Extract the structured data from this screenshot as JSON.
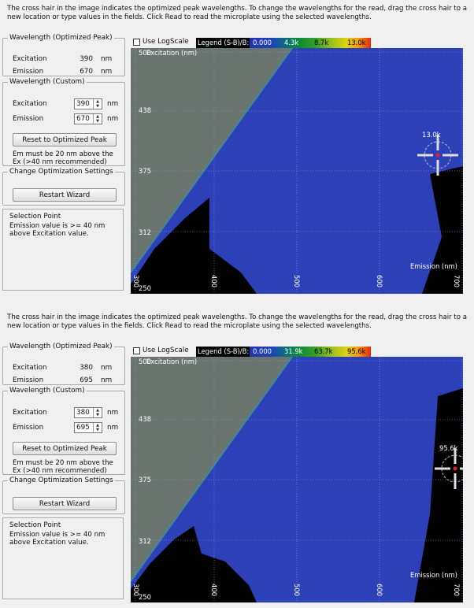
{
  "instructions": "The cross hair in the image indicates the optimized peak wavelengths. To change the wavelengths for the read, drag the cross hair to a new location or type values in the fields. Click Read to read the microplate using the selected wavelengths.",
  "labels": {
    "optimized_title": "Wavelength (Optimized Peak)",
    "excitation": "Excitation",
    "emission": "Emission",
    "nm": "nm",
    "custom_title": "Wavelength (Custom)",
    "reset_button": "Reset to Optimized Peak",
    "custom_note": "Em must be 20 nm above the Ex (>40 nm recommended)",
    "change_title": "Change Optimization Settings",
    "restart_button": "Restart Wizard",
    "selection_title": "Selection Point",
    "selection_msg": "Emission value is >= 40 nm above Excitation value.",
    "use_log_scale": "Use LogScale",
    "legend_label": "Legend (S-B)/B:",
    "y_axis_label": "Excitation (nm)",
    "x_axis_label": "Emission (nm)"
  },
  "panels": [
    {
      "optimized": {
        "excitation": "390",
        "emission": "670"
      },
      "custom": {
        "excitation": "390",
        "emission": "670"
      },
      "legend_ticks": [
        "0.000",
        "4.3k",
        "8.7k",
        "13.0k"
      ],
      "peak_label": "13.0k",
      "y_ticks": [
        "500",
        "438",
        "375",
        "312",
        "250"
      ],
      "x_ticks": [
        "300",
        "400",
        "500",
        "600",
        "700"
      ]
    },
    {
      "optimized": {
        "excitation": "380",
        "emission": "695"
      },
      "custom": {
        "excitation": "380",
        "emission": "695"
      },
      "legend_ticks": [
        "0.000",
        "31.9k",
        "63.7k",
        "95.6k"
      ],
      "peak_label": "95.6k",
      "y_ticks": [
        "500",
        "438",
        "375",
        "312",
        "250"
      ],
      "x_ticks": [
        "300",
        "400",
        "500",
        "600",
        "700"
      ]
    }
  ],
  "colors": {
    "plot_blue": "#2c41b8",
    "grey_region": "#6a7570",
    "black_region": "#000000",
    "crosshair_red": "#e0202a"
  }
}
